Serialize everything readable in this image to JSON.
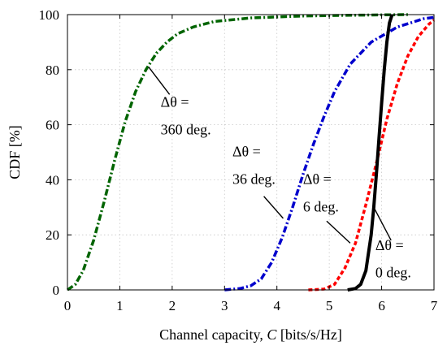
{
  "chart_data": {
    "type": "line",
    "title": "",
    "xlabel": "Channel capacity, C [bits/s/Hz]",
    "xlabel_parts": {
      "prefix": "Channel capacity, ",
      "var": "C",
      "suffix": " [bits/s/Hz]"
    },
    "ylabel": "CDF [%]",
    "xlim": [
      0,
      7
    ],
    "ylim": [
      0,
      100
    ],
    "xticks": [
      0,
      1,
      2,
      3,
      4,
      5,
      6,
      7
    ],
    "yticks": [
      0,
      20,
      40,
      60,
      80,
      100
    ],
    "grid": true,
    "series": [
      {
        "color": "#006400",
        "linestyle": "dashdot",
        "x": [
          0.0,
          0.15,
          0.3,
          0.5,
          0.7,
          0.9,
          1.1,
          1.3,
          1.5,
          1.7,
          1.9,
          2.1,
          2.4,
          2.8,
          3.5,
          4.5,
          5.5,
          6.5
        ],
        "y": [
          0,
          2,
          7,
          18,
          32,
          47,
          61,
          72,
          80,
          86,
          90,
          93,
          95.5,
          97.5,
          98.8,
          99.5,
          99.8,
          100
        ]
      },
      {
        "color": "#0000cd",
        "linestyle": "dashdot",
        "x": [
          3.0,
          3.3,
          3.5,
          3.7,
          3.9,
          4.1,
          4.3,
          4.5,
          4.7,
          4.9,
          5.1,
          5.4,
          5.8,
          6.3,
          6.8,
          7.0
        ],
        "y": [
          0,
          0.5,
          1.5,
          4,
          10,
          19,
          30,
          42,
          53,
          63,
          72,
          82,
          90,
          95.5,
          98.5,
          99
        ]
      },
      {
        "color": "#ff0000",
        "linestyle": "dashed",
        "x": [
          4.6,
          4.9,
          5.1,
          5.3,
          5.5,
          5.7,
          5.9,
          6.1,
          6.3,
          6.5,
          6.7,
          6.9,
          7.0
        ],
        "y": [
          0,
          0.3,
          2,
          8,
          17,
          31,
          46,
          62,
          75,
          85,
          92,
          96.5,
          98
        ]
      },
      {
        "color": "#000000",
        "linestyle": "solid",
        "x": [
          5.35,
          5.5,
          5.6,
          5.7,
          5.8,
          5.85,
          5.9,
          5.95,
          6.0,
          6.05,
          6.1,
          6.15,
          6.2
        ],
        "y": [
          0,
          0.5,
          2,
          7,
          20,
          30,
          42,
          55,
          68,
          80,
          90,
          97,
          100
        ]
      }
    ],
    "annotations": [
      {
        "line1": "Δθ =",
        "line2": "360 deg.",
        "text_pos": {
          "x": 1.78,
          "y1": 66.5,
          "y2": 56.5
        },
        "arrow_from": {
          "x": 1.95,
          "y": 71
        },
        "arrow_to": {
          "x": 1.55,
          "y": 81
        }
      },
      {
        "line1": "Δθ =",
        "line2": "36 deg.",
        "text_pos": {
          "x": 3.15,
          "y1": 48.5,
          "y2": 38.5
        },
        "arrow_from": {
          "x": 3.75,
          "y": 34
        },
        "arrow_to": {
          "x": 4.12,
          "y": 26
        }
      },
      {
        "line1": "Δθ =",
        "line2": "6 deg.",
        "text_pos": {
          "x": 4.5,
          "y1": 38.5,
          "y2": 28.5
        },
        "arrow_from": {
          "x": 4.95,
          "y": 25
        },
        "arrow_to": {
          "x": 5.4,
          "y": 17
        }
      },
      {
        "line1": "Δθ =",
        "line2": "0 deg.",
        "text_pos": {
          "x": 5.88,
          "y1": 14.5,
          "y2": 4.5
        },
        "arrow_from": {
          "x": 6.18,
          "y": 18
        },
        "arrow_to": {
          "x": 5.85,
          "y": 30
        }
      }
    ]
  }
}
